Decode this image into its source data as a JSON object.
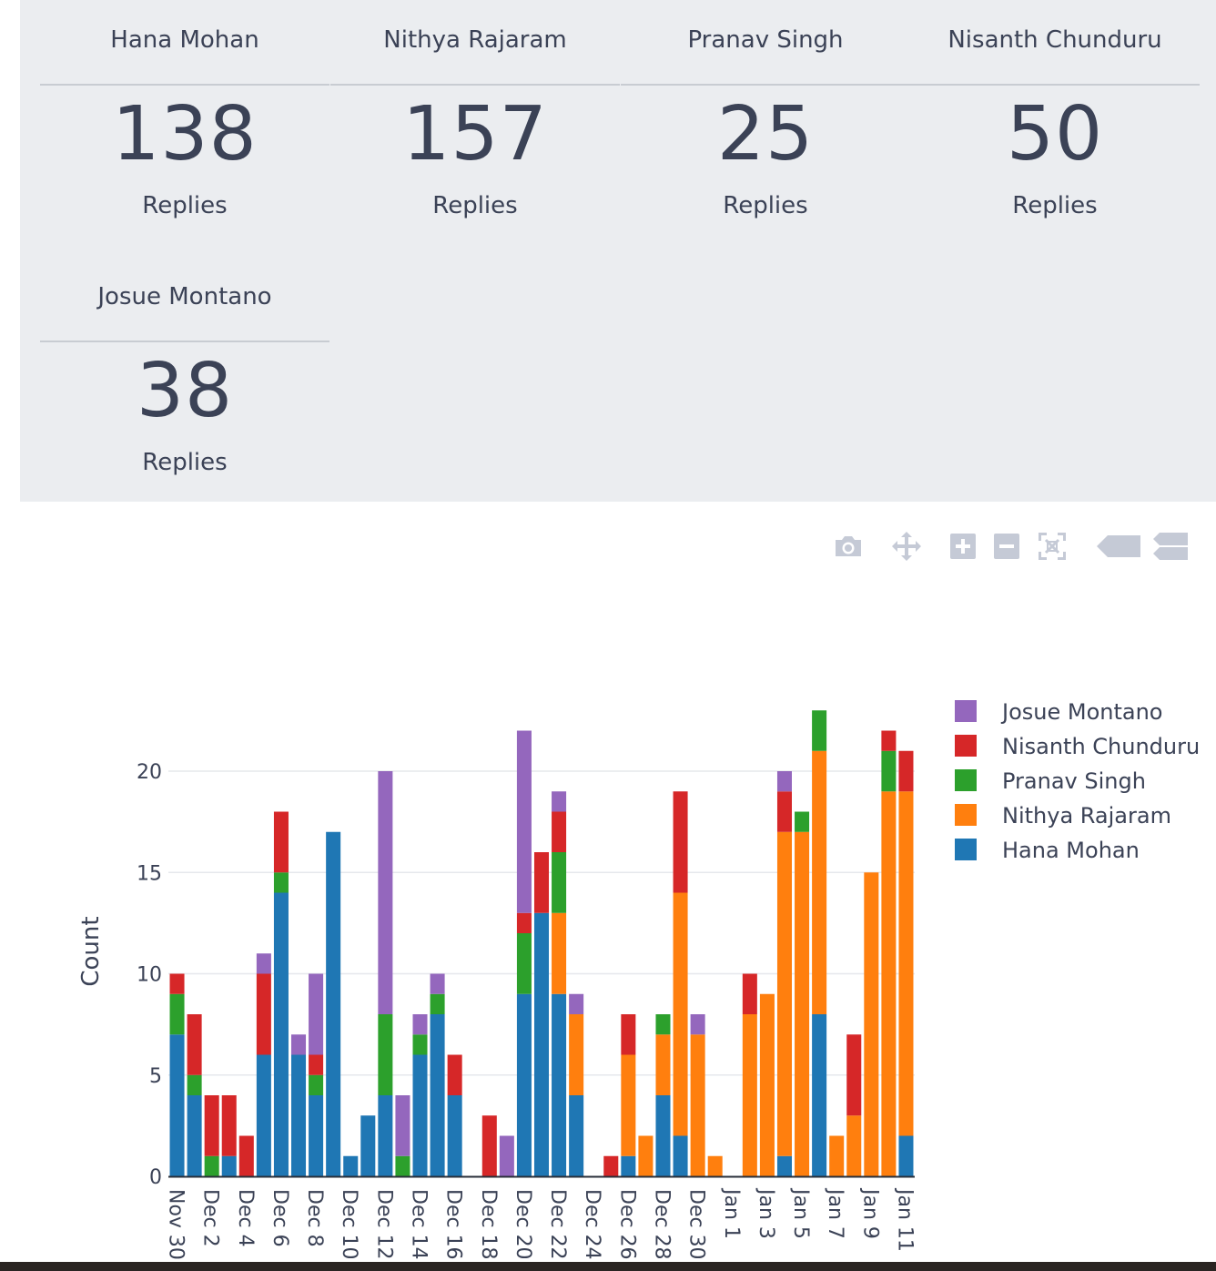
{
  "stats": [
    {
      "name": "Hana Mohan",
      "value": "138",
      "label": "Replies"
    },
    {
      "name": "Nithya Rajaram",
      "value": "157",
      "label": "Replies"
    },
    {
      "name": "Pranav Singh",
      "value": "25",
      "label": "Replies"
    },
    {
      "name": "Nisanth Chunduru",
      "value": "50",
      "label": "Replies"
    },
    {
      "name": "Josue Montano",
      "value": "38",
      "label": "Replies"
    }
  ],
  "modebar": [
    "camera-icon",
    "pan-icon",
    "zoom-in-icon",
    "zoom-out-icon",
    "autoscale-icon",
    "hover-closest-icon",
    "hover-compare-icon"
  ],
  "chart_data": {
    "type": "bar",
    "stacked": true,
    "ylabel": "Count",
    "xlabel": "",
    "ylim": [
      0,
      23
    ],
    "yticks": [
      0,
      5,
      10,
      15,
      20
    ],
    "xtick_labels": [
      "Nov 30",
      "Dec 2",
      "Dec 4",
      "Dec 6",
      "Dec 8",
      "Dec 10",
      "Dec 12",
      "Dec 14",
      "Dec 16",
      "Dec 18",
      "Dec 20",
      "Dec 22",
      "Dec 24",
      "Dec 26",
      "Dec 28",
      "Dec 30",
      "Jan 1",
      "Jan 3",
      "Jan 5",
      "Jan 7",
      "Jan 9",
      "Jan 11"
    ],
    "categories": [
      "Nov 30",
      "Dec 1",
      "Dec 2",
      "Dec 3",
      "Dec 4",
      "Dec 5",
      "Dec 6",
      "Dec 7",
      "Dec 8",
      "Dec 9",
      "Dec 10",
      "Dec 11",
      "Dec 12",
      "Dec 13",
      "Dec 14",
      "Dec 15",
      "Dec 16",
      "Dec 17",
      "Dec 18",
      "Dec 19",
      "Dec 20",
      "Dec 21",
      "Dec 22",
      "Dec 23",
      "Dec 24",
      "Dec 25",
      "Dec 26",
      "Dec 27",
      "Dec 28",
      "Dec 29",
      "Dec 30",
      "Dec 31",
      "Jan 1",
      "Jan 2",
      "Jan 3",
      "Jan 4",
      "Jan 5",
      "Jan 6",
      "Jan 7",
      "Jan 8",
      "Jan 9",
      "Jan 10",
      "Jan 11"
    ],
    "series": [
      {
        "name": "Hana Mohan",
        "color": "#1f77b4",
        "values": [
          7,
          4,
          0,
          1,
          0,
          6,
          14,
          6,
          4,
          17,
          1,
          3,
          4,
          0,
          6,
          8,
          4,
          0,
          0,
          0,
          9,
          13,
          9,
          4,
          0,
          0,
          1,
          0,
          4,
          2,
          0,
          0,
          0,
          0,
          0,
          1,
          0,
          8,
          0,
          0,
          0,
          0,
          2
        ]
      },
      {
        "name": "Nithya Rajaram",
        "color": "#ff7f0e",
        "values": [
          0,
          0,
          0,
          0,
          0,
          0,
          0,
          0,
          0,
          0,
          0,
          0,
          0,
          0,
          0,
          0,
          0,
          0,
          0,
          0,
          0,
          0,
          4,
          4,
          0,
          0,
          5,
          2,
          3,
          12,
          7,
          1,
          0,
          8,
          9,
          16,
          17,
          13,
          2,
          3,
          15,
          19,
          17
        ]
      },
      {
        "name": "Pranav Singh",
        "color": "#2ca02c",
        "values": [
          2,
          1,
          1,
          0,
          0,
          0,
          1,
          0,
          1,
          0,
          0,
          0,
          4,
          1,
          1,
          1,
          0,
          0,
          0,
          0,
          3,
          0,
          3,
          0,
          0,
          0,
          0,
          0,
          1,
          0,
          0,
          0,
          0,
          0,
          0,
          0,
          1,
          2,
          0,
          0,
          0,
          2,
          0
        ]
      },
      {
        "name": "Nisanth Chunduru",
        "color": "#d62728",
        "values": [
          1,
          3,
          3,
          3,
          2,
          4,
          3,
          0,
          1,
          0,
          0,
          0,
          0,
          0,
          0,
          0,
          2,
          0,
          3,
          0,
          1,
          3,
          2,
          0,
          0,
          1,
          2,
          0,
          0,
          5,
          0,
          0,
          0,
          2,
          0,
          2,
          0,
          0,
          0,
          4,
          0,
          1,
          2
        ]
      },
      {
        "name": "Josue Montano",
        "color": "#9467bd",
        "values": [
          0,
          0,
          0,
          0,
          0,
          1,
          0,
          1,
          4,
          0,
          0,
          0,
          12,
          3,
          1,
          1,
          0,
          0,
          0,
          2,
          9,
          0,
          1,
          1,
          0,
          0,
          0,
          0,
          0,
          0,
          1,
          0,
          0,
          0,
          0,
          1,
          0,
          0,
          0,
          0,
          0,
          0,
          0
        ]
      }
    ],
    "legend_order": [
      "Josue Montano",
      "Nisanth Chunduru",
      "Pranav Singh",
      "Nithya Rajaram",
      "Hana Mohan"
    ],
    "legend_position": "top-right"
  }
}
